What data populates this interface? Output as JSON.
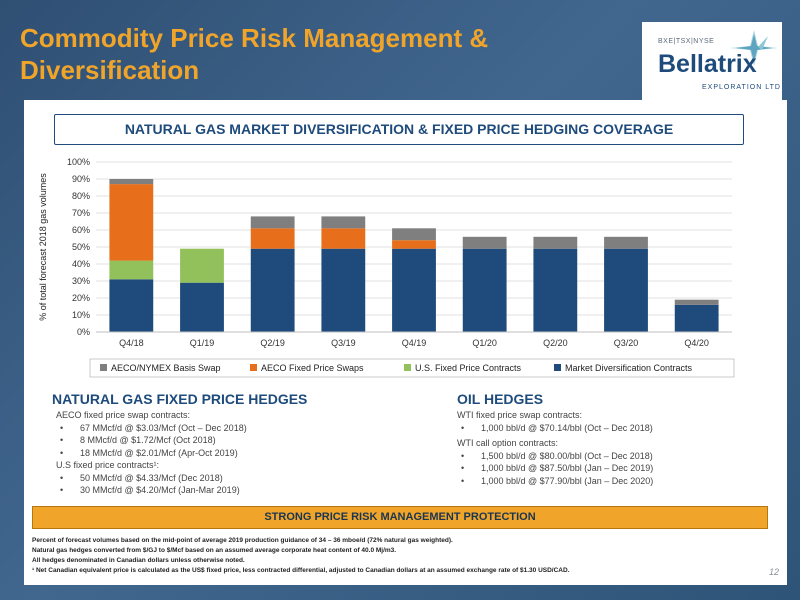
{
  "title": "Commodity Price Risk Management & Diversification",
  "logo": {
    "exchange": "BXE|TSX|NYSE",
    "name": "Bellatrix",
    "subtitle": "EXPLORATION LTD"
  },
  "banner": "NATURAL GAS MARKET DIVERSIFICATION & FIXED PRICE HEDGING COVERAGE",
  "chart_data": {
    "type": "bar",
    "stacked": true,
    "categories": [
      "Q4/18",
      "Q1/19",
      "Q2/19",
      "Q3/19",
      "Q4/19",
      "Q1/20",
      "Q2/20",
      "Q3/20",
      "Q4/20"
    ],
    "series": [
      {
        "name": "Market Diversification Contracts",
        "color": "#1e4b7b",
        "values": [
          31,
          29,
          49,
          49,
          49,
          49,
          49,
          49,
          16
        ]
      },
      {
        "name": "U.S. Fixed Price Contracts",
        "color": "#92c05a",
        "values": [
          11,
          20,
          0,
          0,
          0,
          0,
          0,
          0,
          0
        ]
      },
      {
        "name": "AECO Fixed Price Swaps",
        "color": "#e76f1c",
        "values": [
          45,
          0,
          12,
          12,
          5,
          0,
          0,
          0,
          0
        ]
      },
      {
        "name": "AECO/NYMEX Basis Swap",
        "color": "#7f7f7f",
        "values": [
          3,
          0,
          7,
          7,
          7,
          7,
          7,
          7,
          3
        ]
      }
    ],
    "legend_order": [
      "AECO/NYMEX Basis Swap",
      "AECO Fixed Price Swaps",
      "U.S. Fixed Price Contracts",
      "Market Diversification Contracts"
    ],
    "ylabel": "% of total forecast 2018 gas volumes",
    "ylim": [
      0,
      100
    ],
    "yticks": [
      "0%",
      "10%",
      "20%",
      "30%",
      "40%",
      "50%",
      "60%",
      "70%",
      "80%",
      "90%",
      "100%"
    ],
    "grid": true,
    "legend_position": "bottom"
  },
  "gas_hedges": {
    "title": "NATURAL GAS FIXED PRICE HEDGES",
    "aeco_heading": "AECO fixed price swap contracts:",
    "aeco_items": [
      "67 MMcf/d @ $3.03/Mcf (Oct – Dec 2018)",
      "8 MMcf/d @ $1.72/Mcf (Oct 2018)",
      "18 MMcf/d @ $2.01/Mcf (Apr-Oct 2019)"
    ],
    "us_heading": "U.S fixed price contracts¹:",
    "us_items": [
      "50 MMcf/d @ $4.33/Mcf (Dec 2018)",
      "30 MMcf/d @ $4.20/Mcf (Jan-Mar 2019)"
    ]
  },
  "oil_hedges": {
    "title": "OIL HEDGES",
    "wti_heading": "WTI fixed price swap contracts:",
    "wti_items": [
      "1,000 bbl/d @ $70.14/bbl (Oct – Dec 2018)"
    ],
    "call_heading": "WTI call option contracts:",
    "call_items": [
      "1,500 bbl/d @ $80.00/bbl (Oct – Dec 2018)",
      "1,000 bbl/d @ $87.50/bbl (Jan – Dec 2019)",
      "1,000 bbl/d @ $77.90/bbl (Jan – Dec 2020)"
    ]
  },
  "strong_banner": "STRONG PRICE RISK MANAGEMENT PROTECTION",
  "footnotes": [
    "Percent of forecast volumes based on the mid-point of average 2019 production guidance of 34 – 36 mboe/d (72% natural gas weighted).",
    "Natural gas hedges converted from $/GJ to $/Mcf based on an assumed average corporate heat content of 40.0 Mj/m3.",
    "All hedges denominated in Canadian dollars unless otherwise noted.",
    "¹ Net Canadian equivalent price is calculated as the US$ fixed price, less contracted differential, adjusted to Canadian dollars at an assumed exchange rate of $1.30 USD/CAD."
  ],
  "page_number": "12"
}
